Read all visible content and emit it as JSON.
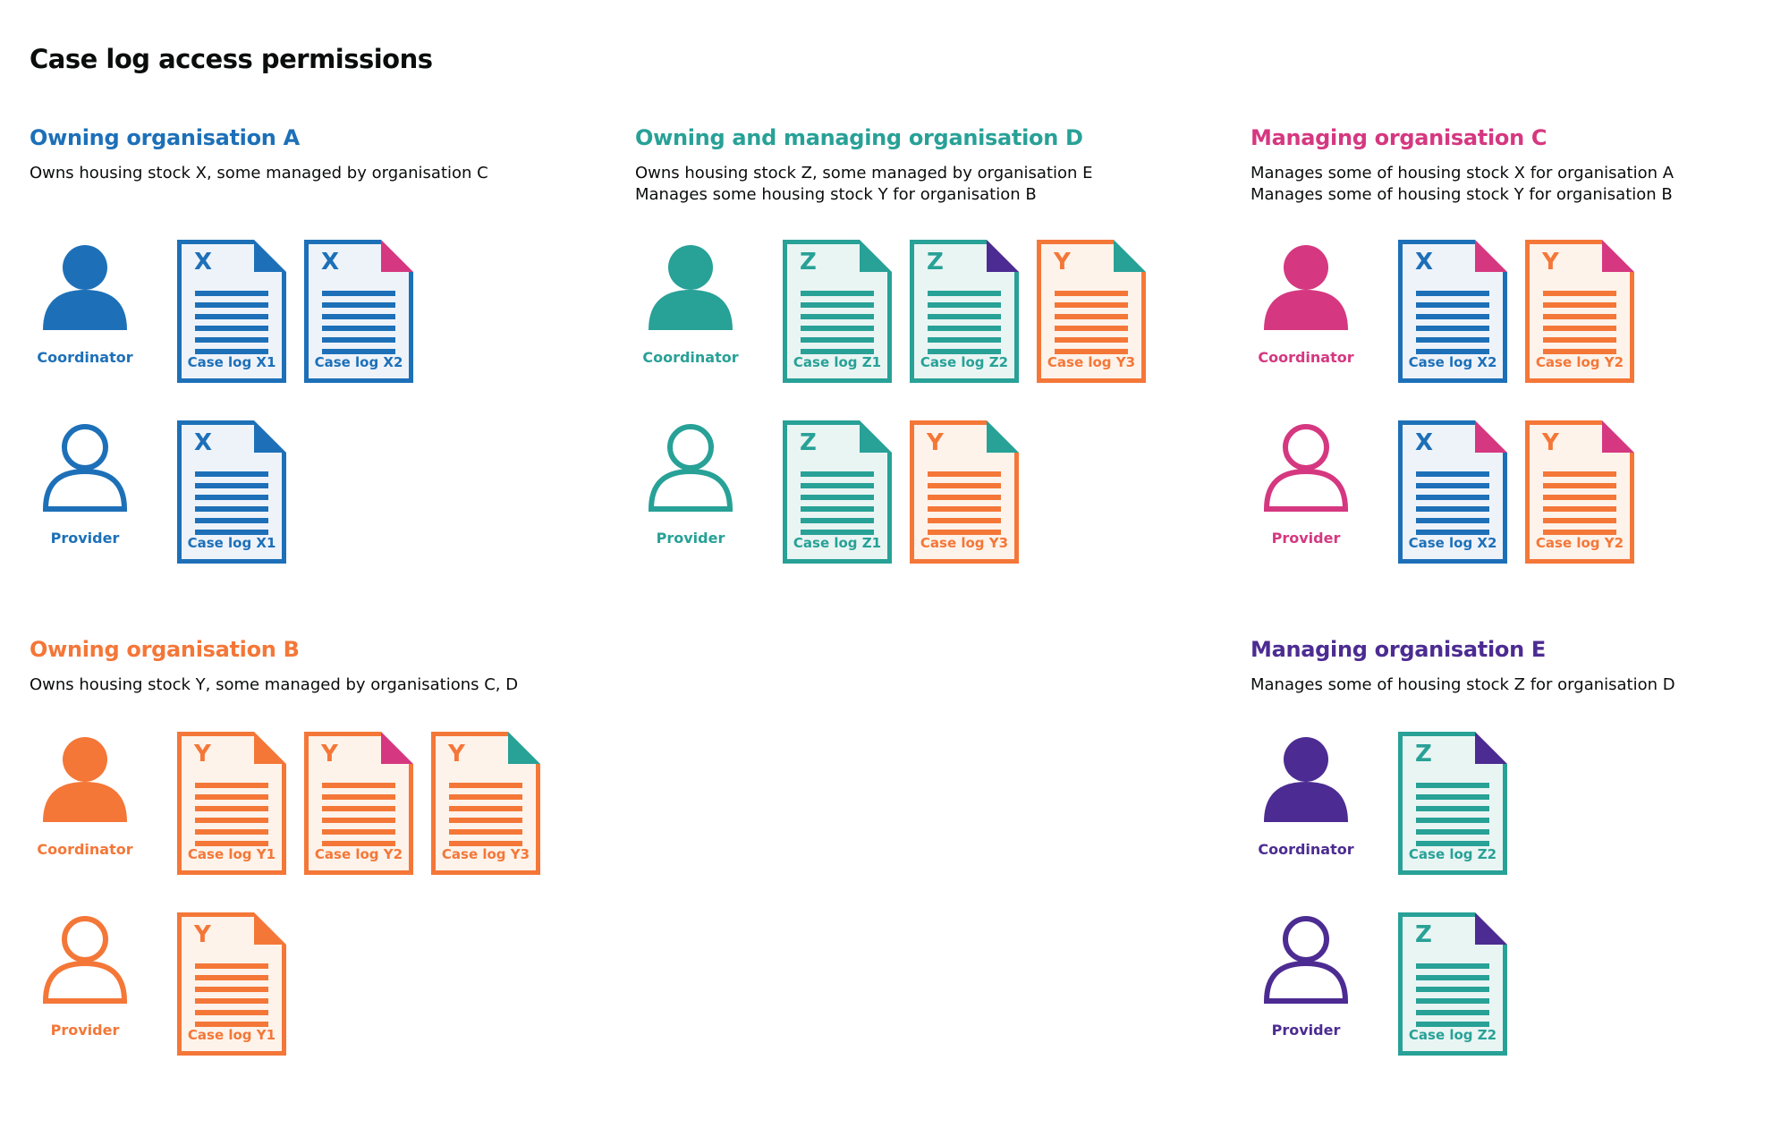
{
  "title": "Case log access permissions",
  "colors": {
    "blue": "#1d70b8",
    "teal": "#28a197",
    "pink": "#d53880",
    "orange": "#f47738",
    "purple": "#4c2c92",
    "text": "#0b0c0c",
    "blue_tint": "#eef3fa",
    "teal_tint": "#e9f5f3",
    "orange_tint": "#fdf3ea"
  },
  "sections": [
    {
      "id": "org-a",
      "color": "blue",
      "heading": "Owning organisation A",
      "description": [
        "Owns housing stock X, some managed by organisation C"
      ],
      "rows": [
        {
          "role": "Coordinator",
          "person": "filled",
          "docs": [
            {
              "letter": "X",
              "label": "Case log X1",
              "scheme": "blue",
              "fold": "blue"
            },
            {
              "letter": "X",
              "label": "Case log X2",
              "scheme": "blue",
              "fold": "pink"
            }
          ]
        },
        {
          "role": "Provider",
          "person": "outline",
          "docs": [
            {
              "letter": "X",
              "label": "Case log X1",
              "scheme": "blue",
              "fold": "blue"
            }
          ]
        }
      ]
    },
    {
      "id": "org-d",
      "color": "teal",
      "heading": "Owning and managing organisation D",
      "description": [
        "Owns housing stock Z, some managed by organisation E",
        "Manages some housing stock Y for organisation B"
      ],
      "rows": [
        {
          "role": "Coordinator",
          "person": "filled",
          "docs": [
            {
              "letter": "Z",
              "label": "Case log Z1",
              "scheme": "teal",
              "fold": "teal"
            },
            {
              "letter": "Z",
              "label": "Case log Z2",
              "scheme": "teal",
              "fold": "purple"
            },
            {
              "letter": "Y",
              "label": "Case log Y3",
              "scheme": "orange",
              "fold": "teal"
            }
          ]
        },
        {
          "role": "Provider",
          "person": "outline",
          "docs": [
            {
              "letter": "Z",
              "label": "Case log Z1",
              "scheme": "teal",
              "fold": "teal"
            },
            {
              "letter": "Y",
              "label": "Case log Y3",
              "scheme": "orange",
              "fold": "teal"
            }
          ]
        }
      ]
    },
    {
      "id": "org-c",
      "color": "pink",
      "heading": "Managing organisation C",
      "description": [
        "Manages some of housing stock X for organisation A",
        "Manages some of housing stock Y for organisation B"
      ],
      "rows": [
        {
          "role": "Coordinator",
          "person": "filled",
          "docs": [
            {
              "letter": "X",
              "label": "Case log X2",
              "scheme": "blue",
              "fold": "pink"
            },
            {
              "letter": "Y",
              "label": "Case log Y2",
              "scheme": "orange",
              "fold": "pink"
            }
          ]
        },
        {
          "role": "Provider",
          "person": "outline",
          "docs": [
            {
              "letter": "X",
              "label": "Case log X2",
              "scheme": "blue",
              "fold": "pink"
            },
            {
              "letter": "Y",
              "label": "Case log Y2",
              "scheme": "orange",
              "fold": "pink"
            }
          ]
        }
      ]
    },
    {
      "id": "org-b",
      "color": "orange",
      "heading": "Owning organisation B",
      "description": [
        "Owns housing stock Y, some managed by organisations C, D"
      ],
      "rows": [
        {
          "role": "Coordinator",
          "person": "filled",
          "docs": [
            {
              "letter": "Y",
              "label": "Case log Y1",
              "scheme": "orange",
              "fold": "orange"
            },
            {
              "letter": "Y",
              "label": "Case log Y2",
              "scheme": "orange",
              "fold": "pink"
            },
            {
              "letter": "Y",
              "label": "Case log Y3",
              "scheme": "orange",
              "fold": "teal"
            }
          ]
        },
        {
          "role": "Provider",
          "person": "outline",
          "docs": [
            {
              "letter": "Y",
              "label": "Case log Y1",
              "scheme": "orange",
              "fold": "orange"
            }
          ]
        }
      ]
    },
    {
      "id": "org-e",
      "color": "purple",
      "heading": "Managing organisation E",
      "description": [
        "Manages some of housing stock Z for organisation D"
      ],
      "rows": [
        {
          "role": "Coordinator",
          "person": "filled",
          "docs": [
            {
              "letter": "Z",
              "label": "Case log Z2",
              "scheme": "teal",
              "fold": "purple"
            }
          ]
        },
        {
          "role": "Provider",
          "person": "outline",
          "docs": [
            {
              "letter": "Z",
              "label": "Case log Z2",
              "scheme": "teal",
              "fold": "purple"
            }
          ]
        }
      ]
    }
  ]
}
